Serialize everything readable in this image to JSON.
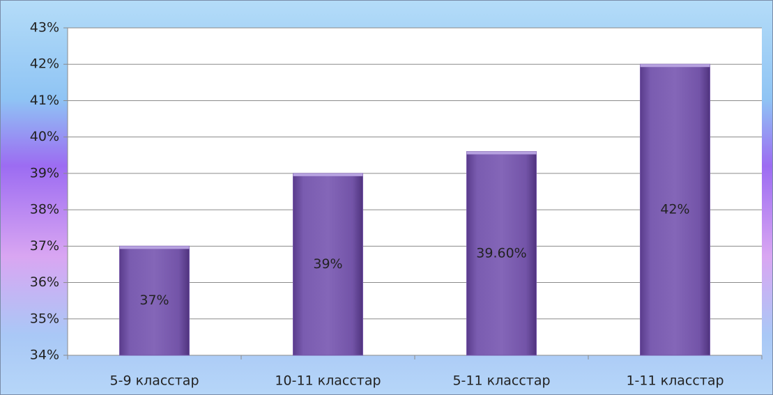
{
  "chart_data": {
    "type": "bar",
    "categories": [
      "5-9 класстар",
      "10-11 класстар",
      "5-11 класстар",
      "1-11 класстар"
    ],
    "values": [
      37,
      39,
      39.6,
      42
    ],
    "value_labels": [
      "37%",
      "39%",
      "39.60%",
      "42%"
    ],
    "color": "#7556a8",
    "ylim": [
      34,
      43
    ],
    "yticks": [
      {
        "value": 34,
        "label": "34%"
      },
      {
        "value": 35,
        "label": "35%"
      },
      {
        "value": 36,
        "label": "36%"
      },
      {
        "value": 37,
        "label": "37%"
      },
      {
        "value": 38,
        "label": "38%"
      },
      {
        "value": 39,
        "label": "39%"
      },
      {
        "value": 40,
        "label": "40%"
      },
      {
        "value": 41,
        "label": "41%"
      },
      {
        "value": 42,
        "label": "42%"
      },
      {
        "value": 43,
        "label": "43%"
      }
    ],
    "grid": true
  }
}
